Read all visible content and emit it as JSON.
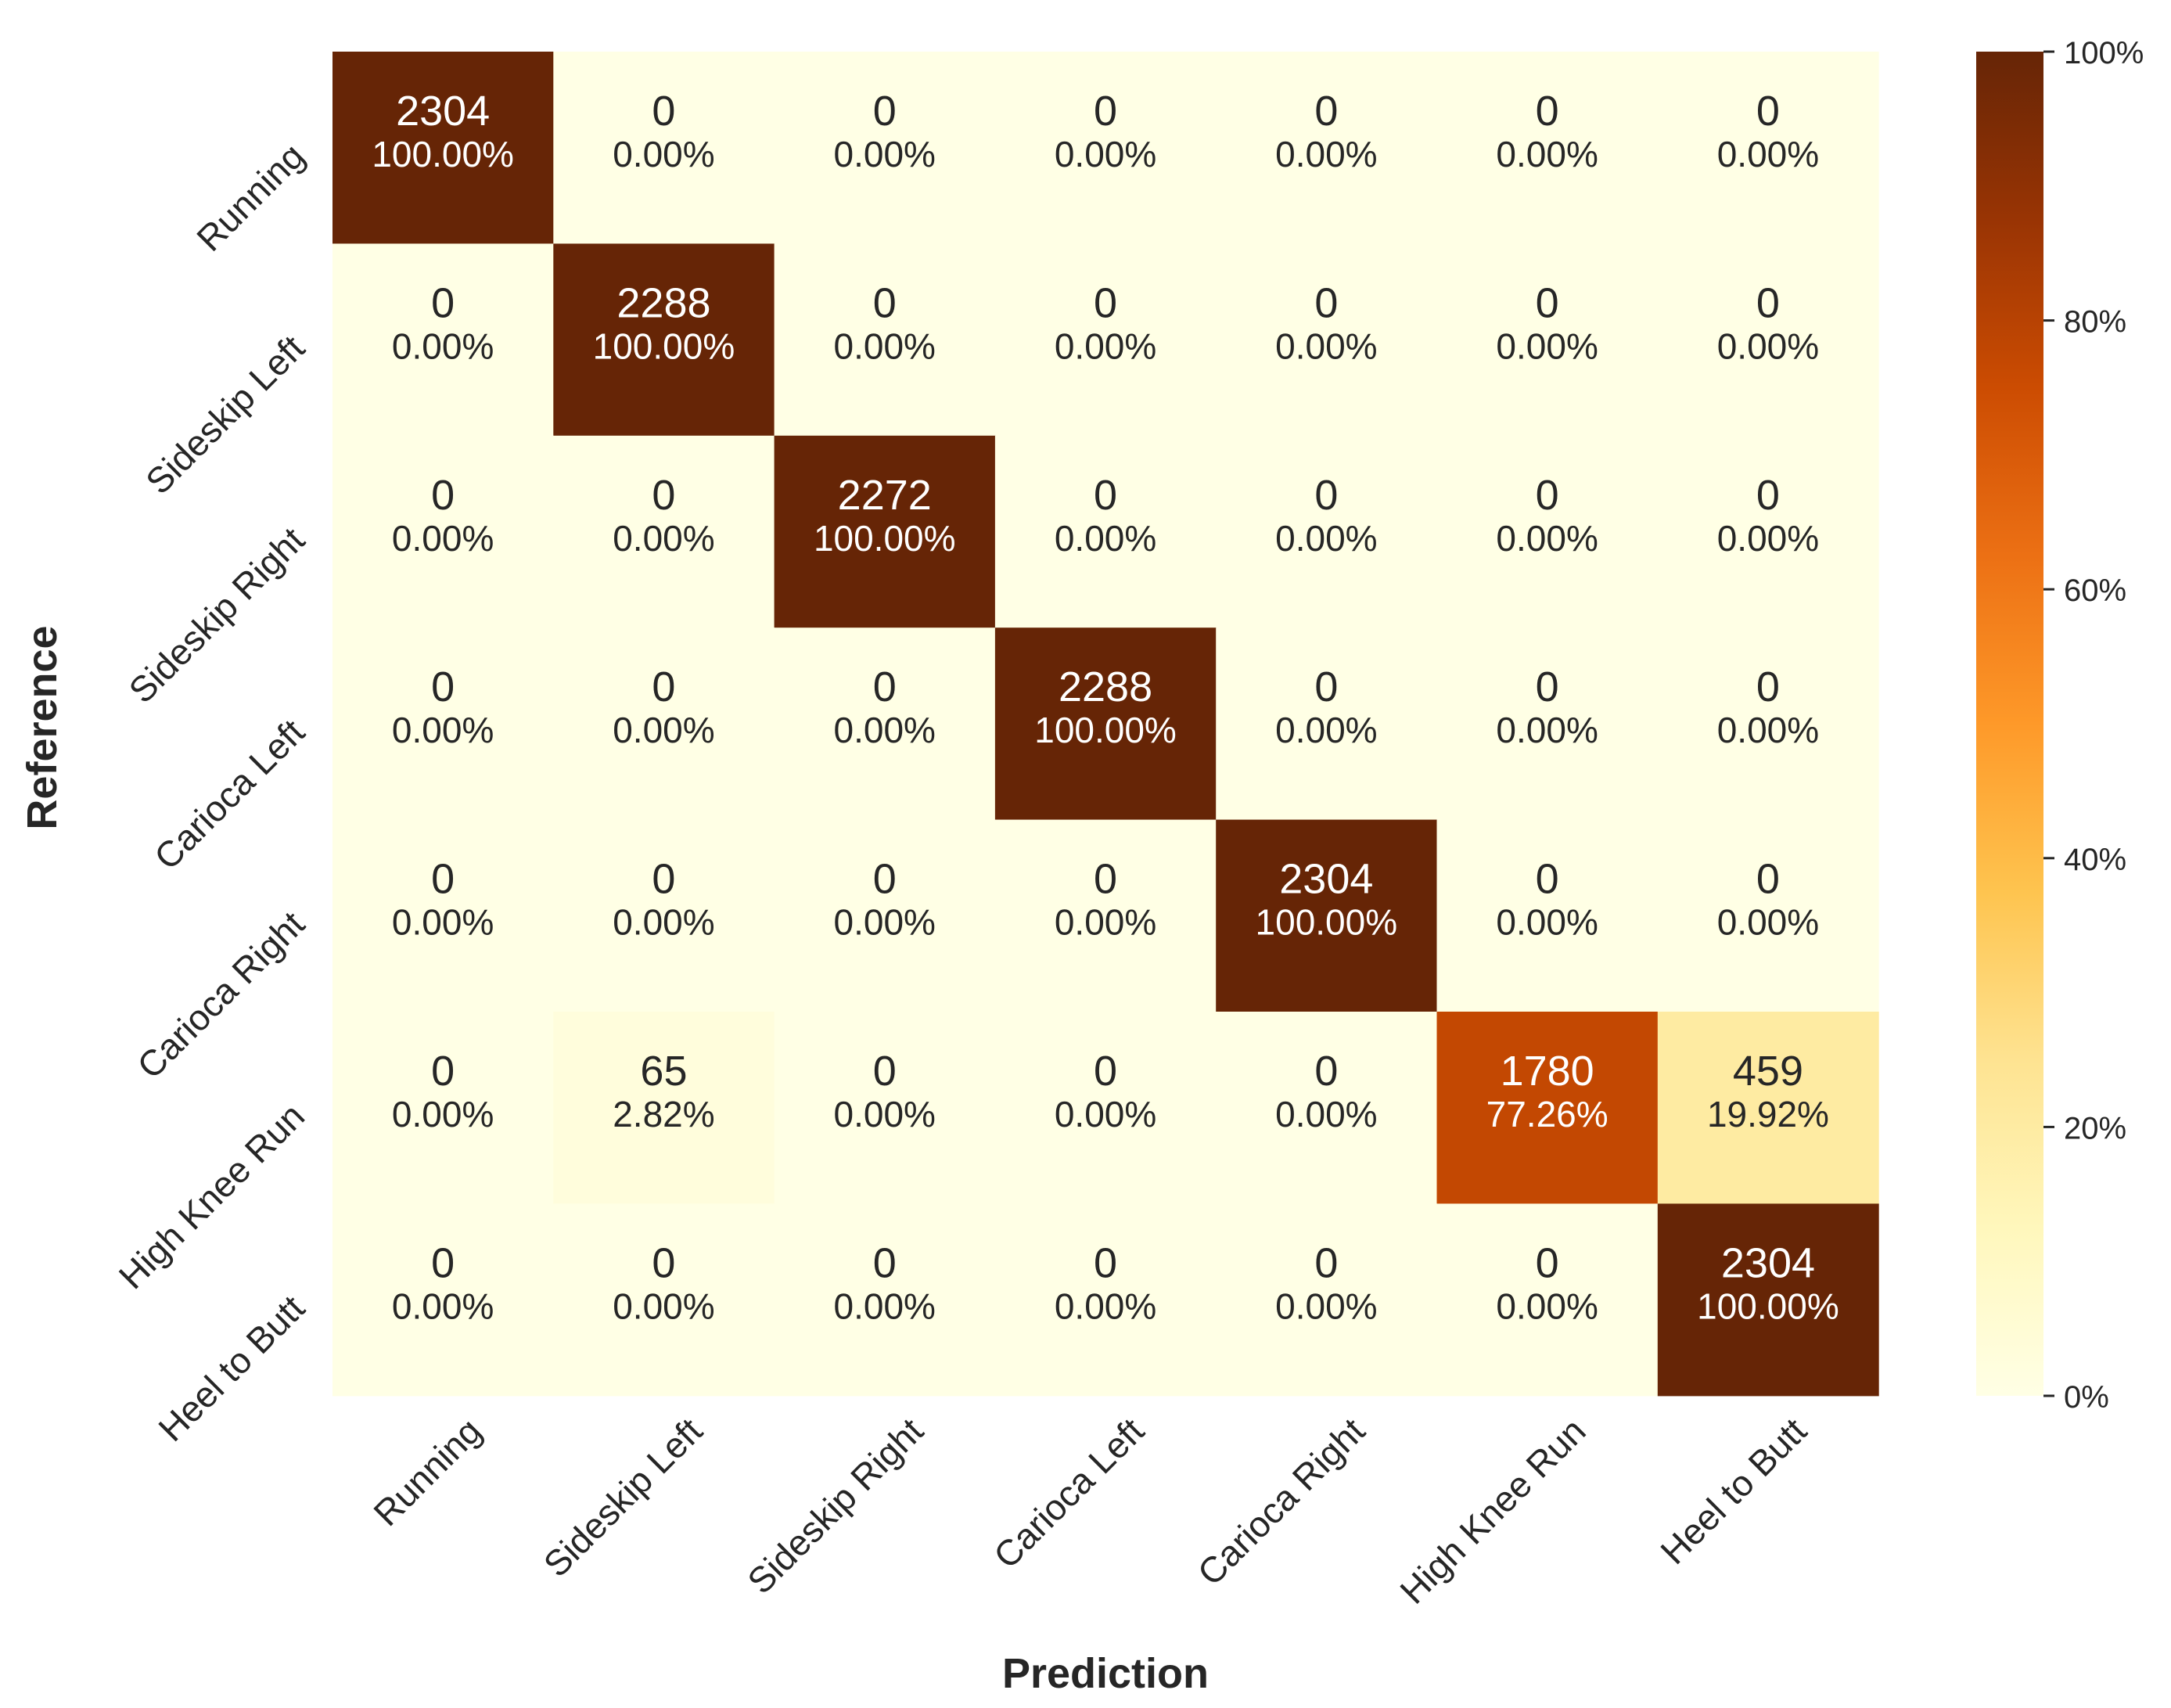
{
  "chart_data": {
    "type": "heatmap",
    "xlabel": "Prediction",
    "ylabel": "Reference",
    "x_categories": [
      "Running",
      "Sideskip Left",
      "Sideskip Right",
      "Carioca Left",
      "Carioca Right",
      "High Knee Run",
      "Heel to Butt"
    ],
    "y_categories": [
      "Running",
      "Sideskip Left",
      "Sideskip Right",
      "Carioca Left",
      "Carioca Right",
      "High Knee Run",
      "Heel to Butt"
    ],
    "counts": [
      [
        2304,
        0,
        0,
        0,
        0,
        0,
        0
      ],
      [
        0,
        2288,
        0,
        0,
        0,
        0,
        0
      ],
      [
        0,
        0,
        2272,
        0,
        0,
        0,
        0
      ],
      [
        0,
        0,
        0,
        2288,
        0,
        0,
        0
      ],
      [
        0,
        0,
        0,
        0,
        2304,
        0,
        0
      ],
      [
        0,
        65,
        0,
        0,
        0,
        1780,
        459
      ],
      [
        0,
        0,
        0,
        0,
        0,
        0,
        2304
      ]
    ],
    "percent_labels": [
      [
        "100.00%",
        "0.00%",
        "0.00%",
        "0.00%",
        "0.00%",
        "0.00%",
        "0.00%"
      ],
      [
        "0.00%",
        "100.00%",
        "0.00%",
        "0.00%",
        "0.00%",
        "0.00%",
        "0.00%"
      ],
      [
        "0.00%",
        "0.00%",
        "100.00%",
        "0.00%",
        "0.00%",
        "0.00%",
        "0.00%"
      ],
      [
        "0.00%",
        "0.00%",
        "0.00%",
        "100.00%",
        "0.00%",
        "0.00%",
        "0.00%"
      ],
      [
        "0.00%",
        "0.00%",
        "0.00%",
        "0.00%",
        "100.00%",
        "0.00%",
        "0.00%"
      ],
      [
        "0.00%",
        "2.82%",
        "0.00%",
        "0.00%",
        "0.00%",
        "77.26%",
        "19.92%"
      ],
      [
        "0.00%",
        "0.00%",
        "0.00%",
        "0.00%",
        "0.00%",
        "0.00%",
        "100.00%"
      ]
    ],
    "percent_values": [
      [
        100,
        0,
        0,
        0,
        0,
        0,
        0
      ],
      [
        0,
        100,
        0,
        0,
        0,
        0,
        0
      ],
      [
        0,
        0,
        100,
        0,
        0,
        0,
        0
      ],
      [
        0,
        0,
        0,
        100,
        0,
        0,
        0
      ],
      [
        0,
        0,
        0,
        0,
        100,
        0,
        0
      ],
      [
        0,
        2.82,
        0,
        0,
        0,
        77.26,
        19.92
      ],
      [
        0,
        0,
        0,
        0,
        0,
        0,
        100
      ]
    ],
    "colorbar": {
      "range": [
        0,
        100
      ],
      "ticks": [
        0,
        20,
        40,
        60,
        80,
        100
      ],
      "tick_labels": [
        "0%",
        "20%",
        "40%",
        "60%",
        "80%",
        "100%"
      ]
    },
    "colormap": "YlOrBr",
    "colormap_stops": [
      "#ffffe5",
      "#fff7bc",
      "#fee391",
      "#fec44f",
      "#fe9929",
      "#ec7014",
      "#cc4c02",
      "#993404",
      "#662506"
    ]
  }
}
